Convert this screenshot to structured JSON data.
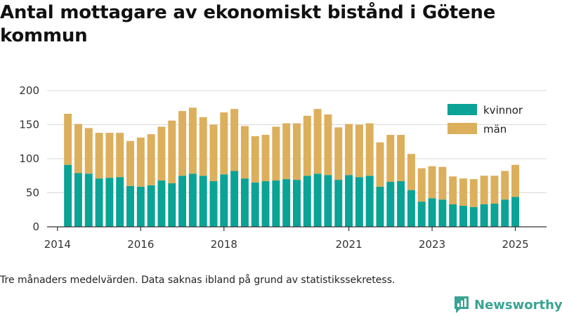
{
  "title": "Antal mottagare av ekonomiskt bistånd i Götene kommun",
  "footnote": "Tre månaders medelvärden. Data saknas ibland på grund av statistikssekretess.",
  "brand": "Newsworthy",
  "chart_data": {
    "type": "bar",
    "stacked": true,
    "x_start": "2014-04",
    "x_step_months": 3,
    "xlim": [
      "2013-10",
      "2025-10"
    ],
    "x_ticks": [
      "2014",
      "2016",
      "2018",
      "2021",
      "2023",
      "2025"
    ],
    "x_tick_dates": [
      "2014-01",
      "2016-01",
      "2018-01",
      "2021-01",
      "2023-01",
      "2025-01"
    ],
    "y_ticks": [
      0,
      50,
      100,
      150,
      200
    ],
    "ylim": [
      0,
      200
    ],
    "grid": true,
    "legend": "top-right",
    "series": [
      {
        "name": "kvinnor",
        "color": "#0aa396",
        "values": [
          91,
          79,
          78,
          71,
          72,
          73,
          60,
          59,
          61,
          68,
          64,
          75,
          78,
          75,
          67,
          77,
          82,
          71,
          65,
          67,
          68,
          70,
          69,
          75,
          78,
          76,
          69,
          76,
          73,
          75,
          59,
          66,
          67,
          54,
          37,
          42,
          40,
          33,
          31,
          29,
          33,
          34,
          40,
          44
        ]
      },
      {
        "name": "män",
        "color": "#dcaf5c",
        "values": [
          75,
          72,
          67,
          67,
          66,
          65,
          66,
          72,
          75,
          79,
          92,
          95,
          97,
          86,
          83,
          91,
          91,
          77,
          68,
          68,
          79,
          82,
          83,
          88,
          95,
          89,
          77,
          75,
          77,
          77,
          65,
          69,
          68,
          53,
          49,
          47,
          48,
          41,
          40,
          41,
          42,
          41,
          42,
          47
        ]
      }
    ]
  }
}
